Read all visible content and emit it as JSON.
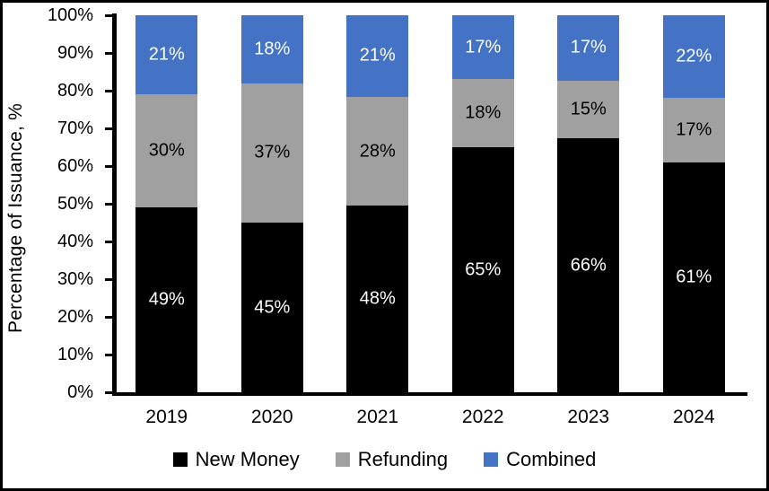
{
  "chart_data": {
    "type": "bar",
    "stacked": true,
    "percent_stacked": true,
    "title": "",
    "ylabel": "Percentage of Issuance, %",
    "categories": [
      "2019",
      "2020",
      "2021",
      "2022",
      "2023",
      "2024"
    ],
    "series": [
      {
        "name": "New Money",
        "color": "#000000",
        "label_color": "#FFFFFF",
        "values": [
          49,
          45,
          48,
          65,
          66,
          61
        ],
        "labels": [
          "49%",
          "45%",
          "48%",
          "65%",
          "66%",
          "61%"
        ]
      },
      {
        "name": "Refunding",
        "color": "#A0A0A0",
        "label_color": "#000000",
        "values": [
          30,
          37,
          28,
          18,
          15,
          17
        ],
        "labels": [
          "30%",
          "37%",
          "28%",
          "18%",
          "15%",
          "17%"
        ]
      },
      {
        "name": "Combined",
        "color": "#4472C4",
        "label_color": "#FFFFFF",
        "values": [
          21,
          18,
          21,
          17,
          17,
          22
        ],
        "labels": [
          "21%",
          "18%",
          "21%",
          "17%",
          "17%",
          "22%"
        ]
      }
    ],
    "ylim": [
      0,
      100
    ],
    "yticks": [
      0,
      10,
      20,
      30,
      40,
      50,
      60,
      70,
      80,
      90,
      100
    ],
    "ytick_labels": [
      "0%",
      "10%",
      "20%",
      "30%",
      "40%",
      "50%",
      "60%",
      "70%",
      "80%",
      "90%",
      "100%"
    ],
    "legend_position": "bottom",
    "grid": false,
    "axis_color": "#000000",
    "background_color": "#FFFFFF"
  }
}
